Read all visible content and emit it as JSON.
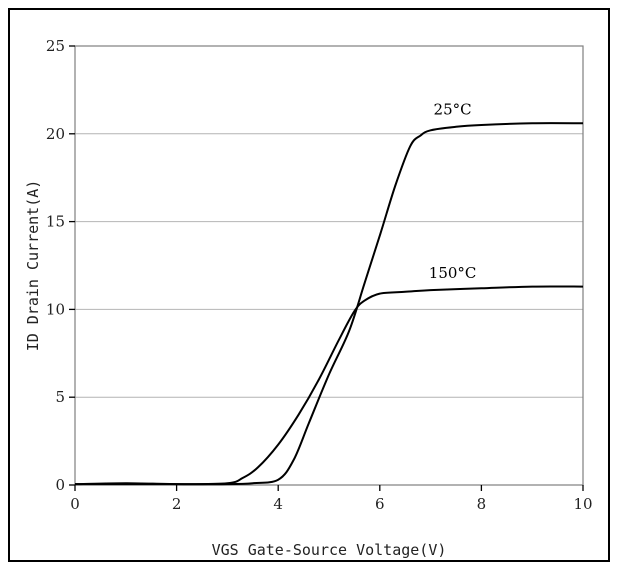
{
  "chart_data": {
    "type": "line",
    "title": "",
    "xlabel": "VGS Gate-Source Voltage(V)",
    "ylabel": "ID Drain Current(A)",
    "xlim": [
      0,
      10
    ],
    "ylim": [
      0,
      25
    ],
    "xticks": [
      0,
      2,
      4,
      6,
      8,
      10
    ],
    "yticks": [
      0,
      5,
      10,
      15,
      20,
      25
    ],
    "grid": "horizontal",
    "legend": "none",
    "colors": {
      "line": "#000000",
      "grid": "#b4b4b4",
      "axis": "#7f7f7f",
      "frame": "#000000"
    },
    "series": [
      {
        "name": "25°C",
        "x": [
          0,
          1,
          2,
          3,
          3.5,
          4.0,
          4.3,
          4.6,
          5.0,
          5.4,
          5.7,
          6.0,
          6.3,
          6.6,
          6.8,
          7.0,
          7.5,
          8.0,
          9.0,
          10.0
        ],
        "y": [
          0.05,
          0.1,
          0.05,
          0.05,
          0.1,
          0.3,
          1.4,
          3.5,
          6.3,
          8.8,
          11.5,
          14.2,
          17.0,
          19.3,
          19.9,
          20.2,
          20.4,
          20.5,
          20.6,
          20.6
        ]
      },
      {
        "name": "150°C",
        "x": [
          0,
          1,
          2,
          3,
          3.3,
          3.6,
          4.0,
          4.4,
          4.8,
          5.2,
          5.5,
          5.7,
          6.0,
          6.5,
          7.0,
          8.0,
          9.0,
          10.0
        ],
        "y": [
          0.05,
          0.05,
          0.05,
          0.1,
          0.4,
          1.0,
          2.3,
          4.0,
          6.0,
          8.3,
          9.9,
          10.5,
          10.9,
          11.0,
          11.1,
          11.2,
          11.3,
          11.3
        ]
      }
    ]
  }
}
